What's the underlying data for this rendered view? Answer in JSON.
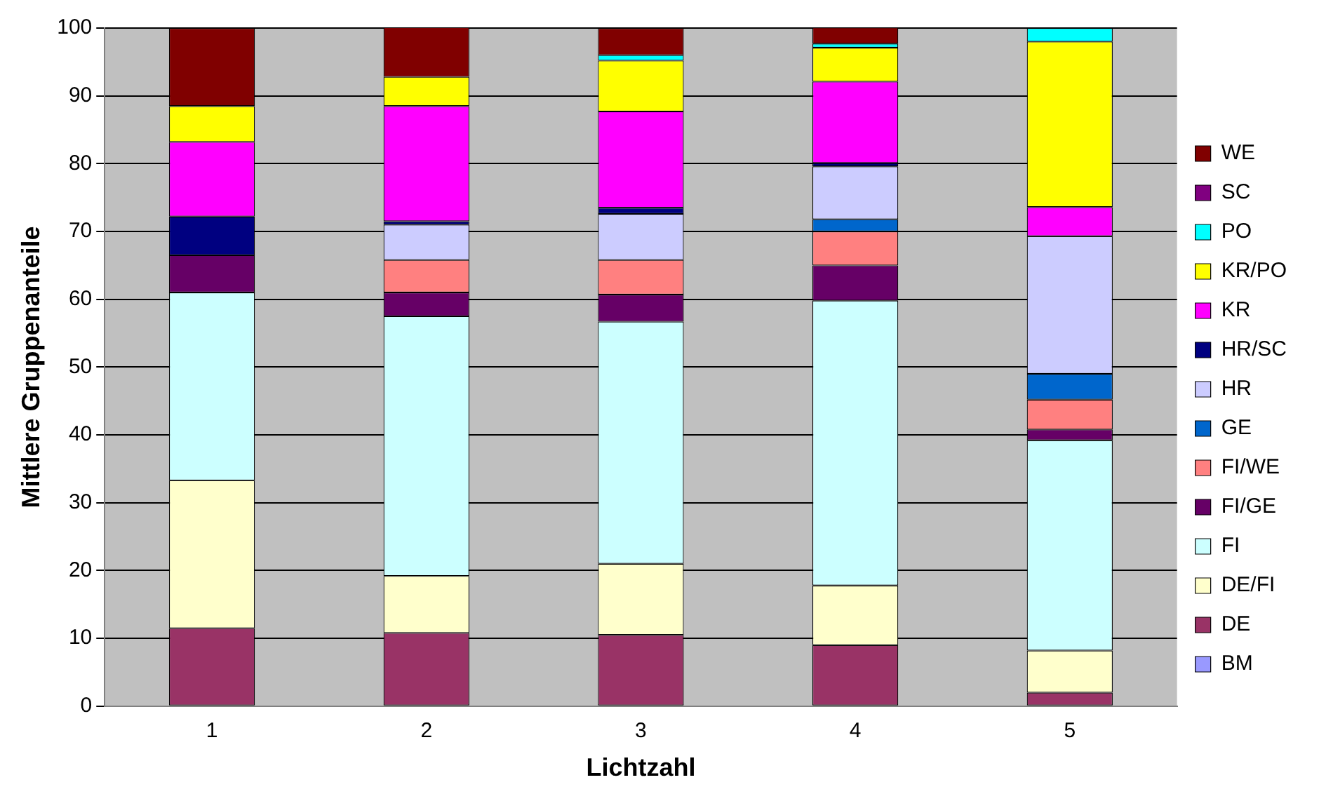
{
  "chart_data": {
    "type": "bar",
    "stacked": true,
    "xlabel": "Lichtzahl",
    "ylabel": "Mittlere Gruppenanteile",
    "categories": [
      "1",
      "2",
      "3",
      "4",
      "5"
    ],
    "ylim": [
      0,
      100
    ],
    "yticks": [
      0,
      10,
      20,
      30,
      40,
      50,
      60,
      70,
      80,
      90,
      100
    ],
    "grid": "y",
    "legend": "right",
    "series": [
      {
        "name": "BM",
        "color": "#9999ff",
        "values": [
          0,
          0,
          0,
          0,
          0
        ]
      },
      {
        "name": "DE",
        "color": "#993366",
        "values": [
          11.5,
          10.8,
          10.5,
          9,
          2
        ]
      },
      {
        "name": "DE/FI",
        "color": "#ffffcc",
        "values": [
          21.8,
          8.4,
          10.5,
          8.8,
          6.2
        ]
      },
      {
        "name": "FI",
        "color": "#ccffff",
        "values": [
          27.7,
          38.3,
          35.7,
          42,
          31
        ]
      },
      {
        "name": "FI/GE",
        "color": "#660066",
        "values": [
          5.5,
          3.5,
          4,
          5.2,
          1.6
        ]
      },
      {
        "name": "FI/WE",
        "color": "#ff8080",
        "values": [
          0,
          4.8,
          5.1,
          5,
          4.4
        ]
      },
      {
        "name": "GE",
        "color": "#0066cc",
        "values": [
          0,
          0,
          0,
          1.8,
          3.8
        ]
      },
      {
        "name": "HR",
        "color": "#ccccff",
        "values": [
          0,
          5.2,
          6.8,
          7.8,
          20.3
        ]
      },
      {
        "name": "HR/SC",
        "color": "#000080",
        "values": [
          5.7,
          0.5,
          0.9,
          0.5,
          0
        ]
      },
      {
        "name": "KR",
        "color": "#ff00ff",
        "values": [
          11,
          17,
          14.2,
          12,
          4.3
        ]
      },
      {
        "name": "KR/PO",
        "color": "#ffff00",
        "values": [
          5.3,
          4.3,
          7.5,
          5,
          24.4
        ]
      },
      {
        "name": "PO",
        "color": "#00ffff",
        "values": [
          0,
          0,
          0.8,
          0.6,
          2
        ]
      },
      {
        "name": "SC",
        "color": "#800080",
        "values": [
          0,
          0,
          0,
          0,
          0
        ]
      },
      {
        "name": "WE",
        "color": "#800000",
        "values": [
          11.5,
          7.4,
          4,
          2.4,
          0
        ]
      }
    ]
  }
}
